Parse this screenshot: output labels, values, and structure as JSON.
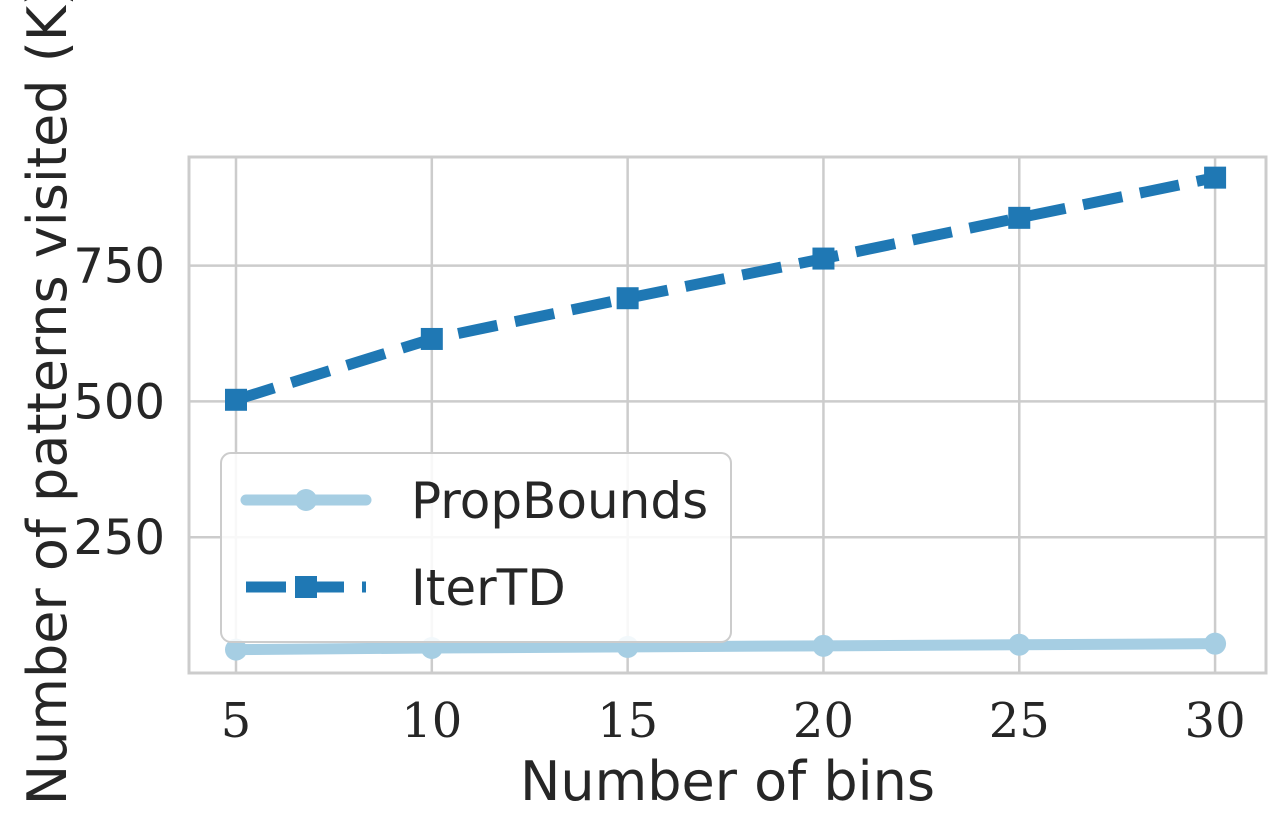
{
  "chart_data": {
    "type": "line",
    "title": "",
    "xlabel": "Number of bins",
    "ylabel": "Number of patterns visited (K)",
    "x": [
      5,
      10,
      15,
      20,
      25,
      30
    ],
    "xticks": [
      "5",
      "10",
      "15",
      "20",
      "25",
      "30"
    ],
    "yticks": [
      "250",
      "500",
      "750"
    ],
    "xlim": [
      3.8,
      31.3
    ],
    "ylim": [
      0,
      950
    ],
    "grid": true,
    "legend_position": "lower-left",
    "series": [
      {
        "name": "PropBounds",
        "values": [
          43,
          46,
          48,
          50,
          52,
          54
        ],
        "color": "#a6cee3",
        "marker": "circle",
        "linestyle": "solid"
      },
      {
        "name": "IterTD",
        "values": [
          503,
          615,
          690,
          763,
          838,
          912
        ],
        "color": "#1f78b4",
        "marker": "square",
        "linestyle": "dashed"
      }
    ]
  }
}
